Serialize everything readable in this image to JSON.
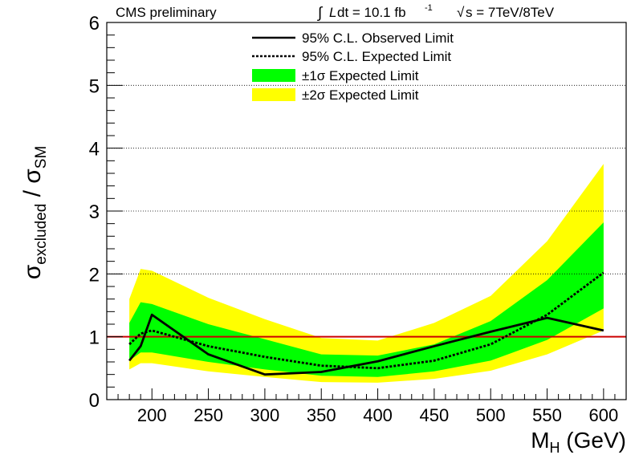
{
  "header": {
    "left": "CMS preliminary",
    "lumi_integral": "∫",
    "lumi_L": "L",
    "lumi_rest": " dt = 10.1 fb",
    "lumi_exp": "-1",
    "sqrt_symbol": "√",
    "energy": "s = 7TeV/8TeV"
  },
  "axis_labels": {
    "y_sigma1": "σ",
    "y_sub1": "excluded",
    "y_slash": " / ",
    "y_sigma2": "σ",
    "y_sub2": "SM",
    "x_main": "M",
    "x_sub": "H",
    "x_unit": " (GeV)"
  },
  "legend": {
    "observed": "95% C.L. Observed Limit",
    "expected": "95% C.L. Expected Limit",
    "one_sigma": "±1σ Expected Limit",
    "two_sigma": "±2σ Expected Limit"
  },
  "colors": {
    "two_sigma_band": "#ffff00",
    "one_sigma_band": "#00ff00",
    "observed": "#000000",
    "expected": "#000000",
    "sm_line": "#cc0000"
  },
  "chart_data": {
    "type": "line",
    "xlim": [
      160,
      620
    ],
    "ylim": [
      0,
      6
    ],
    "x_ticks": [
      200,
      250,
      300,
      350,
      400,
      450,
      500,
      550,
      600
    ],
    "y_ticks": [
      0,
      1,
      2,
      3,
      4,
      5,
      6
    ],
    "grid_y": [
      1,
      2,
      3,
      4,
      5
    ],
    "reference_line_y": 1,
    "legend_position": "top-center",
    "series": [
      {
        "name": "95% C.L. Observed Limit",
        "style": "solid",
        "x": [
          180,
          190,
          200,
          250,
          300,
          350,
          400,
          450,
          500,
          550,
          600
        ],
        "y": [
          0.62,
          0.85,
          1.35,
          0.72,
          0.4,
          0.44,
          0.61,
          0.85,
          1.08,
          1.3,
          1.1
        ]
      },
      {
        "name": "95% C.L. Expected Limit",
        "style": "dashed",
        "x": [
          180,
          190,
          200,
          250,
          300,
          350,
          400,
          450,
          500,
          550,
          600
        ],
        "y": [
          0.88,
          1.05,
          1.1,
          0.85,
          0.68,
          0.54,
          0.5,
          0.62,
          0.88,
          1.35,
          2.02
        ]
      },
      {
        "name": "±1σ Expected Limit",
        "type": "band",
        "x": [
          180,
          190,
          200,
          250,
          300,
          350,
          400,
          450,
          500,
          550,
          600
        ],
        "low": [
          0.62,
          0.75,
          0.75,
          0.6,
          0.48,
          0.38,
          0.36,
          0.45,
          0.62,
          0.95,
          1.45
        ],
        "high": [
          1.22,
          1.55,
          1.52,
          1.2,
          0.96,
          0.72,
          0.7,
          0.88,
          1.25,
          1.9,
          2.82
        ]
      },
      {
        "name": "±2σ Expected Limit",
        "type": "band",
        "x": [
          180,
          190,
          200,
          250,
          300,
          350,
          400,
          450,
          500,
          550,
          600
        ],
        "low": [
          0.48,
          0.58,
          0.58,
          0.45,
          0.36,
          0.28,
          0.27,
          0.33,
          0.46,
          0.72,
          1.1
        ],
        "high": [
          1.6,
          2.08,
          2.05,
          1.62,
          1.28,
          0.98,
          0.94,
          1.22,
          1.65,
          2.52,
          3.75
        ]
      }
    ]
  }
}
